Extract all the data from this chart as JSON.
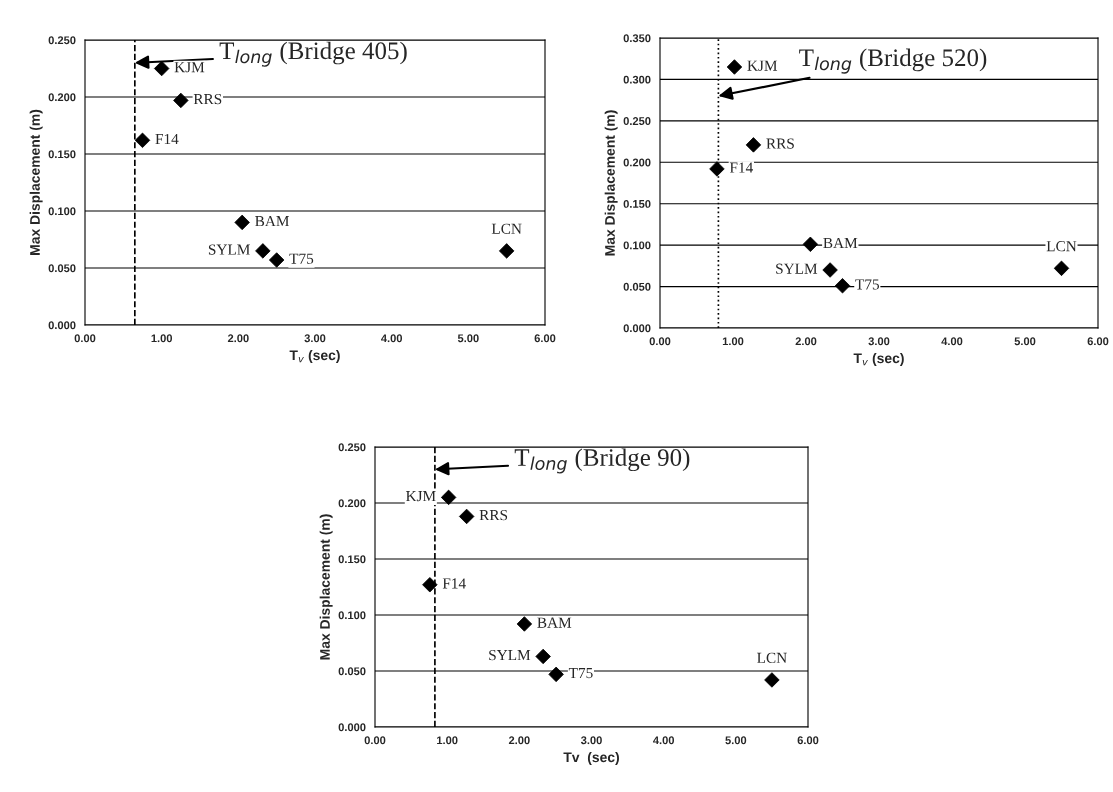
{
  "chart_data": [
    {
      "type": "scatter",
      "xlabel": "T$_{v}$ (sec)",
      "ylabel": "Max Displacement (m)",
      "x": [
        1.0,
        1.25,
        0.75,
        2.05,
        2.32,
        2.5,
        5.5
      ],
      "values": [
        0.225,
        0.197,
        0.162,
        0.09,
        0.065,
        0.057,
        0.065
      ],
      "color": "#000000",
      "marker": "diamond",
      "xlim": [
        0,
        6
      ],
      "ylim": [
        0,
        0.25
      ],
      "xticks": [
        {
          "value": 0,
          "label": "0.00"
        },
        {
          "value": 1,
          "label": "1.00"
        },
        {
          "value": 2,
          "label": "2.00"
        },
        {
          "value": 3,
          "label": "3.00"
        },
        {
          "value": 4,
          "label": "4.00"
        },
        {
          "value": 5,
          "label": "5.00"
        },
        {
          "value": 6,
          "label": "6.00"
        }
      ],
      "yticks": [
        {
          "value": 0,
          "label": "0.000"
        },
        {
          "value": 0.05,
          "label": "0.050"
        },
        {
          "value": 0.1,
          "label": "0.100"
        },
        {
          "value": 0.15,
          "label": "0.150"
        },
        {
          "value": 0.2,
          "label": "0.200"
        },
        {
          "value": 0.25,
          "label": "0.250"
        }
      ],
      "grid": "y",
      "ref_lines": [
        {
          "axis": "x",
          "value": 0.65,
          "label": "T$_{long}$ (Bridge 405)",
          "line_style": "dashed",
          "color": "#000000"
        }
      ],
      "annotations": [
        {
          "text": "KJM",
          "x": 1.0,
          "y": 0.225
        },
        {
          "text": "RRS",
          "x": 1.25,
          "y": 0.197
        },
        {
          "text": "F14",
          "x": 0.75,
          "y": 0.162
        },
        {
          "text": "BAM",
          "x": 2.05,
          "y": 0.09
        },
        {
          "text": "SYLM",
          "x": 2.32,
          "y": 0.065
        },
        {
          "text": "T75",
          "x": 2.5,
          "y": 0.057
        },
        {
          "text": "LCN",
          "x": 5.5,
          "y": 0.065
        }
      ]
    },
    {
      "type": "scatter",
      "xlabel": "T$_{v}$ (sec)",
      "ylabel": "Max Displacement (m)",
      "x": [
        1.02,
        1.28,
        0.78,
        2.06,
        2.33,
        2.5,
        5.5
      ],
      "values": [
        0.315,
        0.221,
        0.192,
        0.101,
        0.07,
        0.051,
        0.072
      ],
      "color": "#000000",
      "marker": "diamond",
      "xlim": [
        0,
        6
      ],
      "ylim": [
        0,
        0.35
      ],
      "xticks": [
        {
          "value": 0,
          "label": "0.00"
        },
        {
          "value": 1,
          "label": "1.00"
        },
        {
          "value": 2,
          "label": "2.00"
        },
        {
          "value": 3,
          "label": "3.00"
        },
        {
          "value": 4,
          "label": "4.00"
        },
        {
          "value": 5,
          "label": "5.00"
        },
        {
          "value": 6,
          "label": "6.00"
        }
      ],
      "yticks": [
        {
          "value": 0,
          "label": "0.000"
        },
        {
          "value": 0.05,
          "label": "0.050"
        },
        {
          "value": 0.1,
          "label": "0.100"
        },
        {
          "value": 0.15,
          "label": "0.150"
        },
        {
          "value": 0.2,
          "label": "0.200"
        },
        {
          "value": 0.25,
          "label": "0.250"
        },
        {
          "value": 0.3,
          "label": "0.300"
        },
        {
          "value": 0.35,
          "label": "0.350"
        }
      ],
      "grid": "y",
      "ref_lines": [
        {
          "axis": "x",
          "value": 0.8,
          "label": "T$_{long}$ (Bridge 520)",
          "line_style": "dotted",
          "color": "#000000"
        }
      ],
      "annotations": [
        {
          "text": "KJM",
          "x": 1.02,
          "y": 0.315
        },
        {
          "text": "RRS",
          "x": 1.28,
          "y": 0.221
        },
        {
          "text": "F14",
          "x": 0.78,
          "y": 0.192
        },
        {
          "text": "BAM",
          "x": 2.06,
          "y": 0.101
        },
        {
          "text": "SYLM",
          "x": 2.33,
          "y": 0.07
        },
        {
          "text": "T75",
          "x": 2.5,
          "y": 0.051
        },
        {
          "text": "LCN",
          "x": 5.5,
          "y": 0.072
        }
      ]
    },
    {
      "type": "scatter",
      "xlabel": "Tv  (sec)",
      "ylabel": "Max Displacement (m)",
      "x": [
        1.02,
        1.27,
        0.76,
        2.07,
        2.33,
        2.51,
        5.5
      ],
      "values": [
        0.205,
        0.188,
        0.127,
        0.092,
        0.063,
        0.047,
        0.042
      ],
      "color": "#000000",
      "marker": "diamond",
      "xlim": [
        0,
        6
      ],
      "ylim": [
        0,
        0.25
      ],
      "xticks": [
        {
          "value": 0,
          "label": "0.00"
        },
        {
          "value": 1,
          "label": "1.00"
        },
        {
          "value": 2,
          "label": "2.00"
        },
        {
          "value": 3,
          "label": "3.00"
        },
        {
          "value": 4,
          "label": "4.00"
        },
        {
          "value": 5,
          "label": "5.00"
        },
        {
          "value": 6,
          "label": "6.00"
        }
      ],
      "yticks": [
        {
          "value": 0,
          "label": "0.000"
        },
        {
          "value": 0.05,
          "label": "0.050"
        },
        {
          "value": 0.1,
          "label": "0.100"
        },
        {
          "value": 0.15,
          "label": "0.150"
        },
        {
          "value": 0.2,
          "label": "0.200"
        },
        {
          "value": 0.25,
          "label": "0.250"
        }
      ],
      "grid": "y",
      "ref_lines": [
        {
          "axis": "x",
          "value": 0.83,
          "label": "T$_{long}$ (Bridge 90)",
          "line_style": "dashed",
          "color": "#000000"
        }
      ],
      "annotations": [
        {
          "text": "KJM",
          "x": 1.02,
          "y": 0.205
        },
        {
          "text": "RRS",
          "x": 1.27,
          "y": 0.188
        },
        {
          "text": "F14",
          "x": 0.76,
          "y": 0.127
        },
        {
          "text": "BAM",
          "x": 2.07,
          "y": 0.092
        },
        {
          "text": "SYLM",
          "x": 2.33,
          "y": 0.063
        },
        {
          "text": "T75",
          "x": 2.51,
          "y": 0.047
        },
        {
          "text": "LCN",
          "x": 5.5,
          "y": 0.042
        }
      ]
    }
  ]
}
